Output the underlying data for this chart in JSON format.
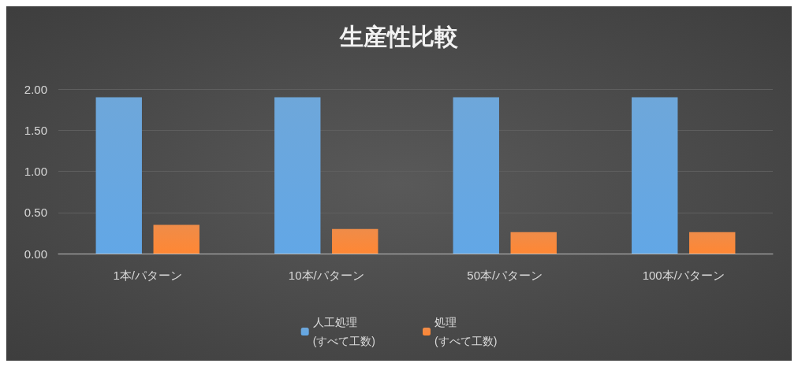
{
  "chart_data": {
    "type": "bar",
    "title": "生産性比較",
    "categories": [
      "1本/パターン",
      "10本/パターン",
      "50本/パターン",
      "100本/パターン"
    ],
    "series": [
      {
        "name": "人工処理\n(すべて工数)",
        "color": "#5b9bd5",
        "values": [
          1.9,
          1.9,
          1.9,
          1.9
        ]
      },
      {
        "name": "処理\n(すべて工数)",
        "color": "#ed7d31",
        "values": [
          0.35,
          0.3,
          0.26,
          0.26
        ]
      }
    ],
    "ylim": [
      0,
      2
    ],
    "yticks": [
      {
        "value": 0,
        "label": "0.00"
      },
      {
        "value": 0.5,
        "label": "0.50"
      },
      {
        "value": 1,
        "label": "1.00"
      },
      {
        "value": 1.5,
        "label": "1.50"
      },
      {
        "value": 2,
        "label": "2.00"
      }
    ],
    "grid": "y",
    "legend": "bottom"
  }
}
